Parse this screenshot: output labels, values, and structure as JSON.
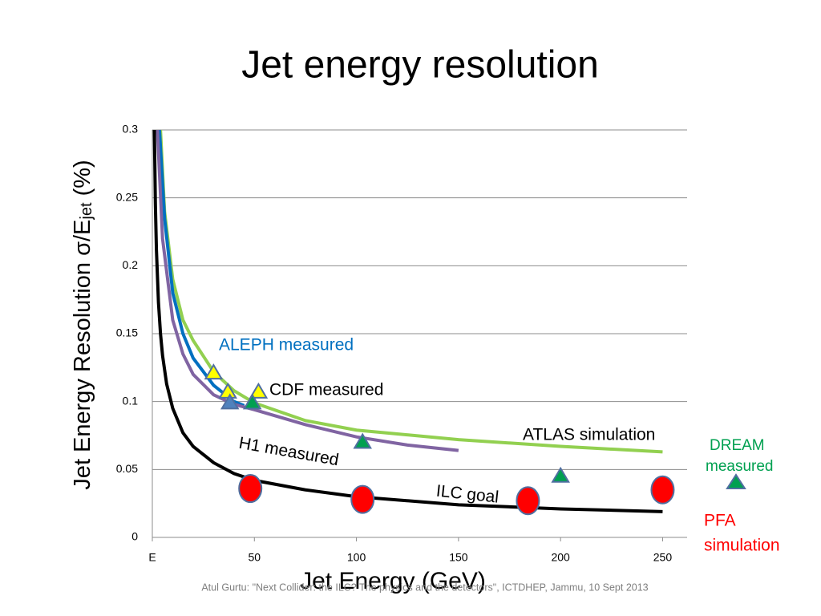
{
  "chart_data": {
    "type": "line",
    "title": "Jet energy resolution",
    "xlabel": "Jet Energy (GeV)",
    "ylabel": {
      "main": "Jet Energy Resolution σ/E",
      "sub": "jet",
      "end": " (%)"
    },
    "footer": "Atul Gurtu: \"Next Collider: the ILC? The physics and the detectors\", ICTDHEP, Jammu, 10 Sept 2013",
    "xlim": [
      0,
      262
    ],
    "ylim": [
      0,
      0.3
    ],
    "xticks": [
      {
        "value": 0,
        "label": "E"
      },
      50,
      100,
      150,
      200,
      250
    ],
    "yticks": [
      0,
      0.05,
      0.1,
      0.15,
      0.2,
      0.25,
      0.3
    ],
    "grid": true,
    "series": [
      {
        "color": "#92d050",
        "x": [
          4,
          6,
          10,
          15,
          20,
          30,
          40,
          50,
          75,
          100,
          150,
          200,
          250
        ],
        "values": [
          0.3,
          0.24,
          0.19,
          0.16,
          0.145,
          0.122,
          0.108,
          0.099,
          0.086,
          0.079,
          0.072,
          0.067,
          0.063
        ]
      },
      {
        "color": "#0070c0",
        "x": [
          3.5,
          6,
          10,
          15,
          20,
          30,
          40,
          45
        ],
        "values": [
          0.3,
          0.235,
          0.18,
          0.15,
          0.132,
          0.112,
          0.1,
          0.097
        ]
      },
      {
        "color": "#8064a2",
        "x": [
          2.5,
          5,
          10,
          15,
          20,
          30,
          40,
          50,
          75,
          100,
          125,
          150
        ],
        "values": [
          0.3,
          0.22,
          0.16,
          0.135,
          0.12,
          0.105,
          0.098,
          0.094,
          0.083,
          0.074,
          0.068,
          0.064
        ]
      },
      {
        "color": "#000000",
        "x": [
          1,
          1.5,
          2,
          3,
          4,
          5,
          7,
          10,
          15,
          20,
          30,
          40,
          50,
          75,
          100,
          150,
          200,
          250
        ],
        "values": [
          0.3,
          0.245,
          0.212,
          0.173,
          0.15,
          0.134,
          0.113,
          0.095,
          0.077,
          0.067,
          0.055,
          0.047,
          0.042,
          0.035,
          0.03,
          0.024,
          0.021,
          0.019
        ]
      }
    ],
    "points": [
      {
        "marker": "circle",
        "color": "#ff0000",
        "x": [
          48,
          103,
          184,
          250
        ],
        "values": [
          0.036,
          0.028,
          0.027,
          0.035
        ]
      },
      {
        "marker": "triangle",
        "color": "#ffff00",
        "x": [
          30,
          37,
          52
        ],
        "values": [
          0.121,
          0.107,
          0.107
        ]
      },
      {
        "marker": "triangle",
        "color": "#4f81bd",
        "x": [
          38
        ],
        "values": [
          0.099
        ]
      },
      {
        "marker": "triangle",
        "color": "#00a050",
        "x": [
          49,
          103,
          200
        ],
        "values": [
          0.099,
          0.07,
          0.045
        ]
      }
    ],
    "annotations": [
      {
        "text": "ALEPH measured",
        "color": "#0070c0"
      },
      {
        "text": "CDF measured",
        "color": "#000000"
      },
      {
        "text": "H1 measured",
        "color": "#000000"
      },
      {
        "text": "ATLAS simulation",
        "color": "#000000"
      },
      {
        "text": "ILC goal",
        "color": "#000000"
      },
      {
        "text": "DREAM",
        "color": "#00a050"
      },
      {
        "text": "measured",
        "color": "#00a050"
      },
      {
        "text": "PFA",
        "color": "#ff0000"
      },
      {
        "text": "simulation",
        "color": "#ff0000"
      }
    ]
  }
}
